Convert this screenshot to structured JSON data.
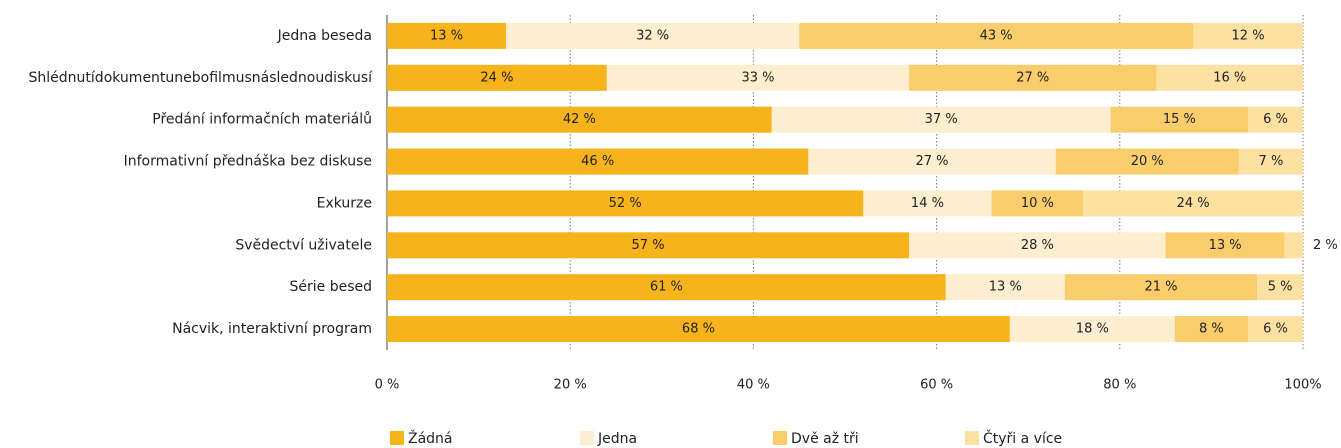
{
  "chart_data": {
    "type": "stacked_barh",
    "categories": [
      "Jedna beseda",
      "Shlédnutídokumentunebofilmusnáslednoudiskusí",
      "Předání informačních materiálů",
      "Informativní přednáška bez diskuse",
      "Exkurze",
      "Svědectví uživatele",
      "Série besed",
      "Nácvik, interaktivní program"
    ],
    "series": [
      {
        "name": "Žádná",
        "color": "#f6b31b",
        "values": [
          13,
          24,
          42,
          46,
          52,
          57,
          61,
          68
        ],
        "value_labels": [
          "13 %",
          "24 %",
          "42 %",
          "46 %",
          "52 %",
          "57 %",
          "61 %",
          "68 %"
        ]
      },
      {
        "name": "Jedna",
        "color": "#fdeed0",
        "values": [
          32,
          33,
          37,
          27,
          14,
          28,
          13,
          18
        ],
        "value_labels": [
          "32 %",
          "33 %",
          "37 %",
          "27 %",
          "14 %",
          "28 %",
          "13 %",
          "18 %"
        ]
      },
      {
        "name": "Dvě až tři",
        "color": "#facd6c",
        "values": [
          43,
          27,
          15,
          20,
          10,
          13,
          21,
          8
        ],
        "value_labels": [
          "43 %",
          "27 %",
          "15 %",
          "20 %",
          "10 %",
          "13 %",
          "21 %",
          "8 %"
        ]
      },
      {
        "name": "Čtyři a více",
        "color": "#fde1a3",
        "values": [
          12,
          16,
          6,
          7,
          24,
          2,
          5,
          6
        ],
        "value_labels": [
          "12 %",
          "16 %",
          "6 %",
          "7 %",
          "24 %",
          "2 %",
          "5 %",
          "6 %"
        ]
      }
    ],
    "xlim": [
      0,
      100
    ],
    "xticks": [
      {
        "value": 0,
        "label": "0 %"
      },
      {
        "value": 20,
        "label": "20 %"
      },
      {
        "value": 40,
        "label": "40 %"
      },
      {
        "value": 60,
        "label": "60 %"
      },
      {
        "value": 80,
        "label": "80 %"
      },
      {
        "value": 100,
        "label": "100%"
      }
    ],
    "grid": true,
    "legend": "bottom"
  }
}
